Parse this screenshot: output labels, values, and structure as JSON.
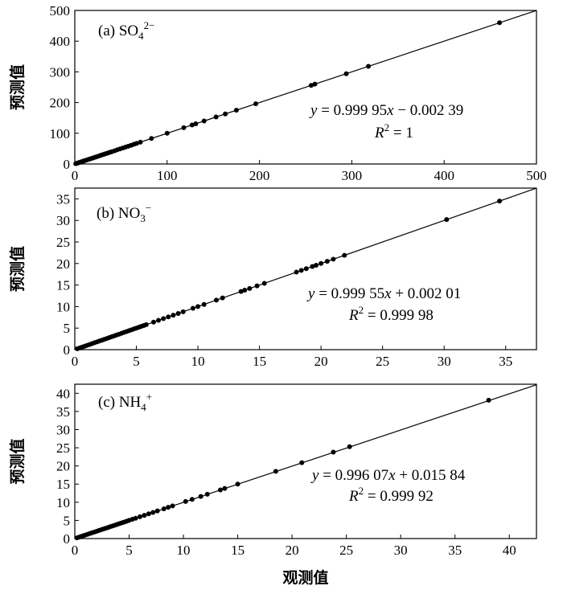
{
  "chart_data": [
    {
      "type": "scatter",
      "label_parts": [
        "(a) SO",
        "4",
        "2−"
      ],
      "equation": {
        "y_part": "y",
        "eq1": " = 0.999 95",
        "x_part": "x",
        "eq2": " − 0.002 39"
      },
      "r2": {
        "r": "R",
        "sup": "2",
        "value": " = 1"
      },
      "fit": {
        "slope": 0.99995,
        "intercept": -0.00239
      },
      "xlim": [
        0,
        500
      ],
      "ylim": [
        0,
        500
      ],
      "xticks": [
        0,
        100,
        200,
        300,
        400,
        500
      ],
      "yticks": [
        0,
        100,
        200,
        300,
        400,
        500
      ],
      "ylabel": "预测值",
      "xlabel": "",
      "points": [
        [
          1,
          1
        ],
        [
          2,
          2
        ],
        [
          3,
          3
        ],
        [
          4,
          4
        ],
        [
          5,
          5
        ],
        [
          6,
          6
        ],
        [
          7,
          7
        ],
        [
          8,
          8
        ],
        [
          9,
          9
        ],
        [
          10,
          10
        ],
        [
          12,
          12
        ],
        [
          14,
          14
        ],
        [
          16,
          16
        ],
        [
          18,
          18
        ],
        [
          20,
          20
        ],
        [
          22,
          22
        ],
        [
          24,
          24
        ],
        [
          26,
          26
        ],
        [
          28,
          28
        ],
        [
          30,
          30
        ],
        [
          32,
          32
        ],
        [
          34,
          34
        ],
        [
          36,
          36
        ],
        [
          38,
          38
        ],
        [
          40,
          40
        ],
        [
          43,
          43
        ],
        [
          46,
          46
        ],
        [
          49,
          49
        ],
        [
          52,
          52
        ],
        [
          55,
          55
        ],
        [
          58,
          58
        ],
        [
          61,
          61
        ],
        [
          64,
          64
        ],
        [
          67,
          67
        ],
        [
          71,
          71
        ],
        [
          83,
          83
        ],
        [
          100,
          100
        ],
        [
          118,
          118
        ],
        [
          127,
          127
        ],
        [
          131,
          131
        ],
        [
          140,
          140
        ],
        [
          153,
          153
        ],
        [
          163,
          163
        ],
        [
          175,
          175
        ],
        [
          196,
          196
        ],
        [
          256,
          256
        ],
        [
          260,
          260
        ],
        [
          294,
          294
        ],
        [
          318,
          318
        ],
        [
          460,
          460
        ]
      ]
    },
    {
      "type": "scatter",
      "label_parts": [
        "(b) NO",
        "3",
        "−"
      ],
      "equation": {
        "y_part": "y",
        "eq1": " = 0.999 55",
        "x_part": "x",
        "eq2": " + 0.002 01"
      },
      "r2": {
        "r": "R",
        "sup": "2",
        "value": " = 0.999 98"
      },
      "fit": {
        "slope": 0.99955,
        "intercept": 0.00201
      },
      "xlim": [
        0,
        37.5
      ],
      "ylim": [
        0,
        37.5
      ],
      "xticks": [
        0,
        5,
        10,
        15,
        20,
        25,
        30,
        35
      ],
      "yticks": [
        0,
        5,
        10,
        15,
        20,
        25,
        30,
        35
      ],
      "ylabel": "预测值",
      "xlabel": "",
      "points": [
        [
          0.2,
          0.2
        ],
        [
          0.4,
          0.4
        ],
        [
          0.6,
          0.6
        ],
        [
          0.8,
          0.8
        ],
        [
          1.0,
          1.0
        ],
        [
          1.2,
          1.2
        ],
        [
          1.4,
          1.4
        ],
        [
          1.6,
          1.6
        ],
        [
          1.8,
          1.8
        ],
        [
          2.0,
          2.0
        ],
        [
          2.2,
          2.2
        ],
        [
          2.4,
          2.4
        ],
        [
          2.6,
          2.6
        ],
        [
          2.8,
          2.8
        ],
        [
          3.0,
          3.0
        ],
        [
          3.2,
          3.2
        ],
        [
          3.4,
          3.4
        ],
        [
          3.6,
          3.6
        ],
        [
          3.8,
          3.8
        ],
        [
          4.0,
          4.0
        ],
        [
          4.2,
          4.2
        ],
        [
          4.4,
          4.4
        ],
        [
          4.6,
          4.6
        ],
        [
          4.8,
          4.8
        ],
        [
          5.0,
          5.0
        ],
        [
          5.2,
          5.2
        ],
        [
          5.4,
          5.4
        ],
        [
          5.6,
          5.6
        ],
        [
          5.8,
          5.8
        ],
        [
          6.4,
          6.4
        ],
        [
          6.8,
          6.8
        ],
        [
          7.2,
          7.2
        ],
        [
          7.6,
          7.6
        ],
        [
          8.0,
          8.0
        ],
        [
          8.4,
          8.4
        ],
        [
          8.8,
          8.8
        ],
        [
          9.6,
          9.6
        ],
        [
          10.0,
          10.0
        ],
        [
          10.5,
          10.5
        ],
        [
          11.5,
          11.5
        ],
        [
          12.0,
          12.0
        ],
        [
          13.5,
          13.5
        ],
        [
          13.8,
          13.8
        ],
        [
          14.2,
          14.2
        ],
        [
          14.8,
          14.8
        ],
        [
          15.4,
          15.4
        ],
        [
          18.0,
          18.0
        ],
        [
          18.4,
          18.4
        ],
        [
          18.8,
          18.8
        ],
        [
          19.3,
          19.3
        ],
        [
          19.6,
          19.6
        ],
        [
          20.0,
          20.0
        ],
        [
          20.5,
          20.5
        ],
        [
          21.0,
          21.0
        ],
        [
          21.9,
          21.9
        ],
        [
          30.2,
          30.2
        ],
        [
          34.5,
          34.5
        ]
      ]
    },
    {
      "type": "scatter",
      "label_parts": [
        "(c) NH",
        "4",
        "+"
      ],
      "equation": {
        "y_part": "y",
        "eq1": " = 0.996 07",
        "x_part": "x",
        "eq2": " + 0.015 84"
      },
      "r2": {
        "r": "R",
        "sup": "2",
        "value": " = 0.999 92"
      },
      "fit": {
        "slope": 0.99607,
        "intercept": 0.01584
      },
      "xlim": [
        0,
        42.5
      ],
      "ylim": [
        0,
        42.5
      ],
      "xticks": [
        0,
        5,
        10,
        15,
        20,
        25,
        30,
        35,
        40
      ],
      "yticks": [
        0,
        5,
        10,
        15,
        20,
        25,
        30,
        35,
        40
      ],
      "ylabel": "预测值",
      "xlabel": "观测值",
      "points": [
        [
          0.2,
          0.2
        ],
        [
          0.4,
          0.4
        ],
        [
          0.6,
          0.6
        ],
        [
          0.8,
          0.8
        ],
        [
          1.0,
          1.0
        ],
        [
          1.2,
          1.2
        ],
        [
          1.4,
          1.4
        ],
        [
          1.6,
          1.6
        ],
        [
          1.8,
          1.8
        ],
        [
          2.0,
          2.0
        ],
        [
          2.2,
          2.2
        ],
        [
          2.4,
          2.4
        ],
        [
          2.6,
          2.6
        ],
        [
          2.8,
          2.8
        ],
        [
          3.0,
          3.0
        ],
        [
          3.2,
          3.2
        ],
        [
          3.4,
          3.4
        ],
        [
          3.6,
          3.6
        ],
        [
          3.8,
          3.8
        ],
        [
          4.0,
          4.0
        ],
        [
          4.2,
          4.2
        ],
        [
          4.4,
          4.4
        ],
        [
          4.6,
          4.6
        ],
        [
          4.8,
          4.8
        ],
        [
          5.0,
          5.0
        ],
        [
          5.3,
          5.3
        ],
        [
          5.6,
          5.6
        ],
        [
          6.0,
          6.0
        ],
        [
          6.4,
          6.4
        ],
        [
          6.8,
          6.8
        ],
        [
          7.2,
          7.2
        ],
        [
          7.6,
          7.6
        ],
        [
          8.2,
          8.2
        ],
        [
          8.6,
          8.6
        ],
        [
          9.0,
          9.0
        ],
        [
          10.2,
          10.2
        ],
        [
          10.8,
          10.8
        ],
        [
          11.6,
          11.6
        ],
        [
          12.2,
          12.2
        ],
        [
          13.4,
          13.4
        ],
        [
          13.8,
          13.8
        ],
        [
          15.0,
          15.0
        ],
        [
          18.5,
          18.5
        ],
        [
          20.9,
          20.9
        ],
        [
          23.8,
          23.8
        ],
        [
          25.3,
          25.3
        ],
        [
          38.1,
          38.1
        ]
      ]
    }
  ]
}
